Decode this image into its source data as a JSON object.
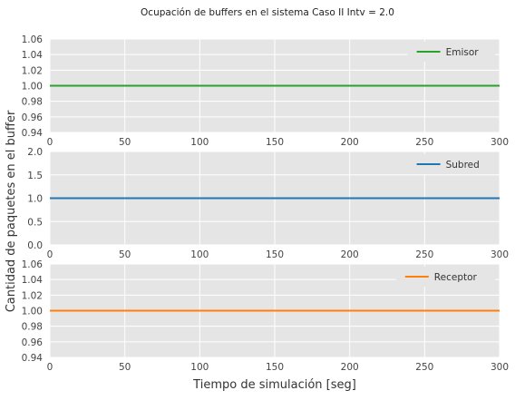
{
  "chart_data": {
    "type": "line",
    "title": "Ocupación de buffers en el sistema Caso II Intv = 2.0",
    "xlabel": "Tiempo de simulación [seg]",
    "ylabel": "Cantidad de paquetes en el buffer",
    "grid": true,
    "legend_placement": "top-right",
    "subplots": [
      {
        "xlim": [
          0,
          300
        ],
        "ylim": [
          0.94,
          1.06
        ],
        "xticks": [
          "0",
          "50",
          "100",
          "150",
          "200",
          "250",
          "300"
        ],
        "yticks": [
          "0.94",
          "0.96",
          "0.98",
          "1.00",
          "1.02",
          "1.04",
          "1.06"
        ],
        "series": [
          {
            "name": "Emisor",
            "color": "#2ca02c",
            "x": [
              0,
              300
            ],
            "y": [
              1.0,
              1.0
            ]
          }
        ]
      },
      {
        "xlim": [
          0,
          300
        ],
        "ylim": [
          0.0,
          2.0
        ],
        "xticks": [
          "0",
          "50",
          "100",
          "150",
          "200",
          "250",
          "300"
        ],
        "yticks": [
          "0.0",
          "0.5",
          "1.0",
          "1.5",
          "2.0"
        ],
        "series": [
          {
            "name": "Subred",
            "color": "#1f77b4",
            "x": [
              0,
              300
            ],
            "y": [
              1.0,
              1.0
            ]
          }
        ]
      },
      {
        "xlim": [
          0,
          300
        ],
        "ylim": [
          0.94,
          1.06
        ],
        "xticks": [
          "0",
          "50",
          "100",
          "150",
          "200",
          "250",
          "300"
        ],
        "yticks": [
          "0.94",
          "0.96",
          "0.98",
          "1.00",
          "1.02",
          "1.04",
          "1.06"
        ],
        "series": [
          {
            "name": "Receptor",
            "color": "#ff7f0e",
            "x": [
              0,
              300
            ],
            "y": [
              1.0,
              1.0
            ]
          }
        ]
      }
    ]
  }
}
